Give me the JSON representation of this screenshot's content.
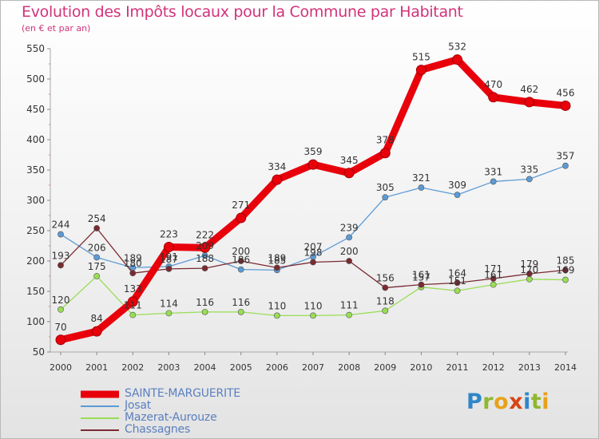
{
  "header": {
    "title": "Evolution des Impôts locaux pour la Commune par Habitant",
    "subtitle": "(en € et par an)"
  },
  "logo": {
    "letters": [
      {
        "ch": "P",
        "color": "#2e86c8"
      },
      {
        "ch": "r",
        "color": "#8fb82e"
      },
      {
        "ch": "o",
        "color": "#e8a11c"
      },
      {
        "ch": "x",
        "color": "#d84315"
      },
      {
        "ch": "i",
        "color": "#2e86c8"
      },
      {
        "ch": "t",
        "color": "#8fb82e"
      },
      {
        "ch": "i",
        "color": "#e8a11c"
      }
    ]
  },
  "chart_data": {
    "type": "line",
    "title": "Evolution des Impôts locaux pour la Commune par Habitant",
    "subtitle": "(en € et par an)",
    "xlabel": "",
    "ylabel": "",
    "x": [
      "2000",
      "2001",
      "2002",
      "2003",
      "2004",
      "2005",
      "2006",
      "2007",
      "2008",
      "2009",
      "2010",
      "2011",
      "2012",
      "2013",
      "2014"
    ],
    "yticks": [
      "50",
      "100",
      "150",
      "200",
      "250",
      "300",
      "350",
      "400",
      "450",
      "500",
      "550"
    ],
    "ylim": [
      50,
      550
    ],
    "grid": false,
    "legend_position": "bottom-left",
    "series": [
      {
        "name": "SAINTE-MARGUERITE",
        "color": "#e8000b",
        "emphasis": true,
        "values": [
          70,
          84,
          133,
          223,
          222,
          271,
          334,
          359,
          345,
          378,
          515,
          532,
          470,
          462,
          456
        ],
        "labels": [
          "70",
          "84",
          "133",
          "223",
          "222",
          "271",
          "334",
          "359",
          "345",
          "378",
          "515",
          "532",
          "470",
          "462",
          "456"
        ]
      },
      {
        "name": "Josat",
        "color": "#5b9bd5",
        "values": [
          244,
          206,
          189,
          191,
          209,
          186,
          185,
          207,
          239,
          305,
          321,
          309,
          331,
          335,
          357
        ],
        "labels": [
          "244",
          "206",
          "189",
          "191",
          "209",
          "186",
          "185",
          "207",
          "239",
          "305",
          "321",
          "309",
          "331",
          "335",
          "357"
        ]
      },
      {
        "name": "Mazerat-Aurouze",
        "color": "#99dd55",
        "values": [
          120,
          175,
          111,
          114,
          116,
          116,
          110,
          110,
          111,
          118,
          157,
          151,
          161,
          170,
          169
        ],
        "labels": [
          "120",
          "175",
          "111",
          "114",
          "116",
          "116",
          "110",
          "110",
          "111",
          "118",
          "157",
          "151",
          "161",
          "170",
          "169"
        ]
      },
      {
        "name": "Chassagnes",
        "color": "#7a2a32",
        "values": [
          193,
          254,
          180,
          187,
          188,
          200,
          189,
          198,
          200,
          156,
          161,
          164,
          171,
          179,
          185
        ],
        "labels": [
          "193",
          "254",
          "180",
          "187",
          "188",
          "200",
          "189",
          "198",
          "200",
          "156",
          "161",
          "164",
          "171",
          "179",
          "185"
        ]
      }
    ]
  }
}
